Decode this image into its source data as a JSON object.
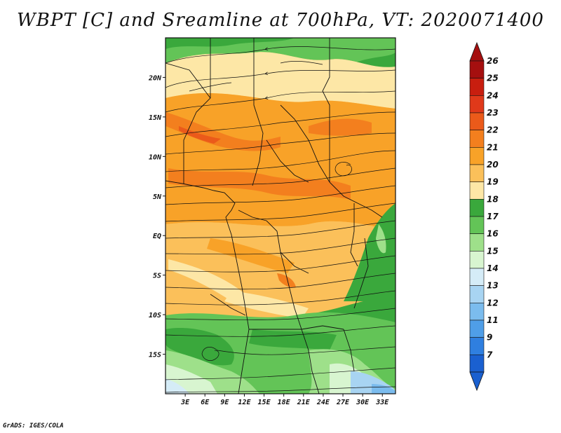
{
  "title": "WBPT [C] and Sreamline at 700hPa, VT: 2020071400",
  "credit": "GrADS: IGES/COLA",
  "map": {
    "lon_range": [
      0,
      35
    ],
    "lat_range": [
      -20,
      25
    ],
    "lat_ticks": [
      {
        "value": 20,
        "label": "20N"
      },
      {
        "value": 15,
        "label": "15N"
      },
      {
        "value": 10,
        "label": "10N"
      },
      {
        "value": 5,
        "label": "5N"
      },
      {
        "value": 0,
        "label": "EQ"
      },
      {
        "value": -5,
        "label": "5S"
      },
      {
        "value": -10,
        "label": "10S"
      },
      {
        "value": -15,
        "label": "15S"
      }
    ],
    "lon_ticks": [
      {
        "value": 3,
        "label": "3E"
      },
      {
        "value": 6,
        "label": "6E"
      },
      {
        "value": 9,
        "label": "9E"
      },
      {
        "value": 12,
        "label": "12E"
      },
      {
        "value": 15,
        "label": "15E"
      },
      {
        "value": 18,
        "label": "18E"
      },
      {
        "value": 21,
        "label": "21E"
      },
      {
        "value": 24,
        "label": "24E"
      },
      {
        "value": 27,
        "label": "27E"
      },
      {
        "value": 30,
        "label": "30E"
      },
      {
        "value": 33,
        "label": "33E"
      }
    ]
  },
  "colorbar": {
    "levels": [
      "26",
      "25",
      "24",
      "23",
      "22",
      "21",
      "20",
      "19",
      "18",
      "17",
      "16",
      "15",
      "14",
      "13",
      "12",
      "11",
      "9",
      "7"
    ],
    "colors": [
      "#a50f0f",
      "#c81e0f",
      "#e0391a",
      "#eb5a1a",
      "#f37f1e",
      "#f8a228",
      "#fbc05a",
      "#fde7a6",
      "#3aa83c",
      "#63c457",
      "#9ee08a",
      "#d8f5d0",
      "#d5ecf7",
      "#a8d4f2",
      "#7bbcee",
      "#4f9ee8",
      "#2f7fe0",
      "#1a60d0"
    ]
  },
  "colors": {
    "orange": "#f8a228",
    "light_orange": "#fbc05a",
    "yellow": "#fde7a6",
    "dark_orange": "#f37f1e",
    "red_orange": "#eb5a1a",
    "green": "#63c457",
    "light_green": "#9ee08a",
    "dark_green": "#3aa83c",
    "pale": "#d8f5d0",
    "light_blue": "#a8d4f2"
  }
}
